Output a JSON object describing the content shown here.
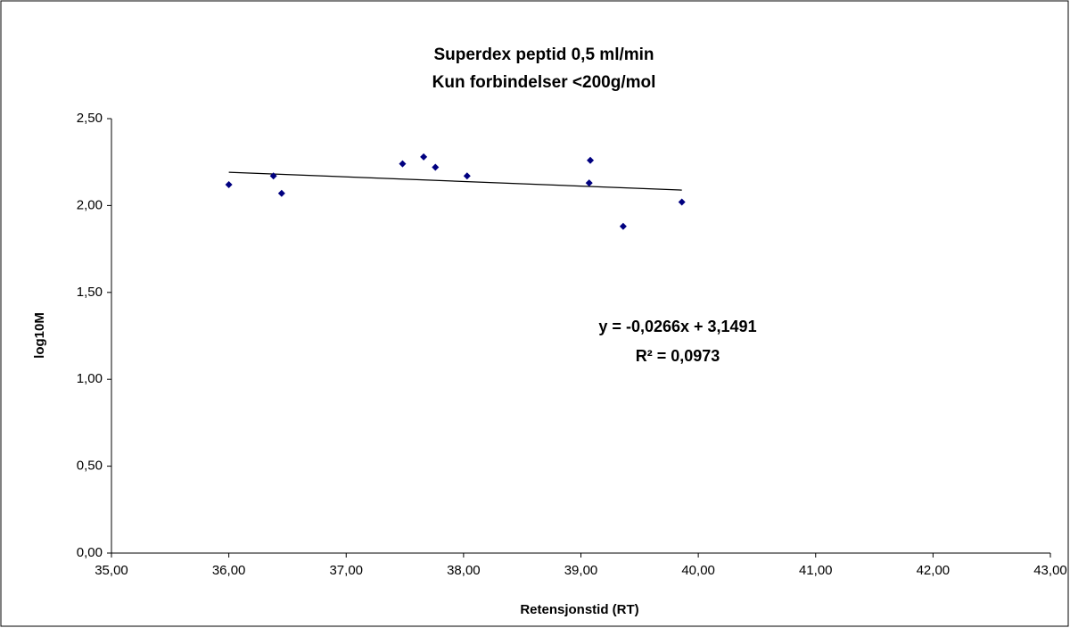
{
  "chart_data": {
    "type": "scatter",
    "title": "Superdex peptid 0,5 ml/min",
    "subtitle": "Kun forbindelser <200g/mol",
    "x_label": "Retensjonstid (RT)",
    "y_label": "log10M",
    "x": [
      36.0,
      36.38,
      36.45,
      37.48,
      37.66,
      37.76,
      38.03,
      39.08,
      39.07,
      39.36,
      39.86
    ],
    "values": [
      2.12,
      2.17,
      2.07,
      2.24,
      2.28,
      2.22,
      2.17,
      2.26,
      2.13,
      1.88,
      2.02
    ],
    "color": "#000080",
    "xlim": [
      35,
      43
    ],
    "xticks": [
      {
        "value": 35,
        "label": "35,00"
      },
      {
        "value": 36,
        "label": "36,00"
      },
      {
        "value": 37,
        "label": "37,00"
      },
      {
        "value": 38,
        "label": "38,00"
      },
      {
        "value": 39,
        "label": "39,00"
      },
      {
        "value": 40,
        "label": "40,00"
      },
      {
        "value": 41,
        "label": "41,00"
      },
      {
        "value": 42,
        "label": "42,00"
      },
      {
        "value": 43,
        "label": "43,00"
      }
    ],
    "ylim": [
      0,
      2.5
    ],
    "yticks": [
      {
        "value": 0,
        "label": "0,00"
      },
      {
        "value": 0.5,
        "label": "0,50"
      },
      {
        "value": 1,
        "label": "1,00"
      },
      {
        "value": 1.5,
        "label": "1,50"
      },
      {
        "value": 2,
        "label": "2,00"
      },
      {
        "value": 2.5,
        "label": "2,50"
      }
    ],
    "trendline": {
      "slope": -0.0266,
      "intercept": 3.1491,
      "equation": "y = -0,0266x + 3,1491",
      "r_squared": "R² = 0,0973"
    }
  }
}
